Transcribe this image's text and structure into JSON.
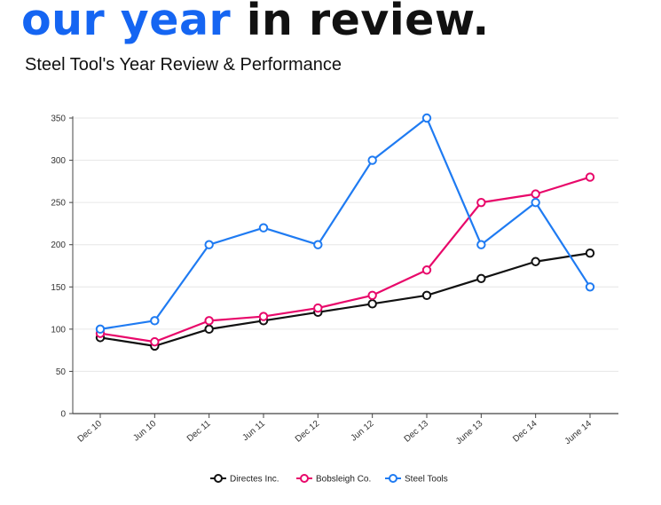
{
  "header": {
    "title_accent": "our year",
    "title_rest": "in review.",
    "subtitle": "Steel Tool's Year Review & Performance"
  },
  "chart_data": {
    "type": "line",
    "title": "",
    "xlabel": "",
    "ylabel": "",
    "categories": [
      "Dec 10",
      "Jun 10",
      "Dec 11",
      "Jun 11",
      "Dec 12",
      "Jun 12",
      "Dec 13",
      "June 13",
      "Dec 14",
      "June 14"
    ],
    "ylim": [
      0,
      350
    ],
    "yticks": [
      0,
      50,
      100,
      150,
      200,
      250,
      300,
      350
    ],
    "grid": "horizontal",
    "legend_position": "bottom",
    "series": [
      {
        "name": "Directes Inc.",
        "color": "#111111",
        "values": [
          90,
          80,
          100,
          110,
          120,
          130,
          140,
          160,
          180,
          190
        ]
      },
      {
        "name": "Bobsleigh Co.",
        "color": "#e8086a",
        "values": [
          95,
          85,
          110,
          115,
          125,
          140,
          170,
          250,
          260,
          280
        ]
      },
      {
        "name": "Steel Tools",
        "color": "#1f7bf2",
        "values": [
          100,
          110,
          200,
          220,
          200,
          300,
          350,
          200,
          250,
          150
        ]
      }
    ]
  }
}
